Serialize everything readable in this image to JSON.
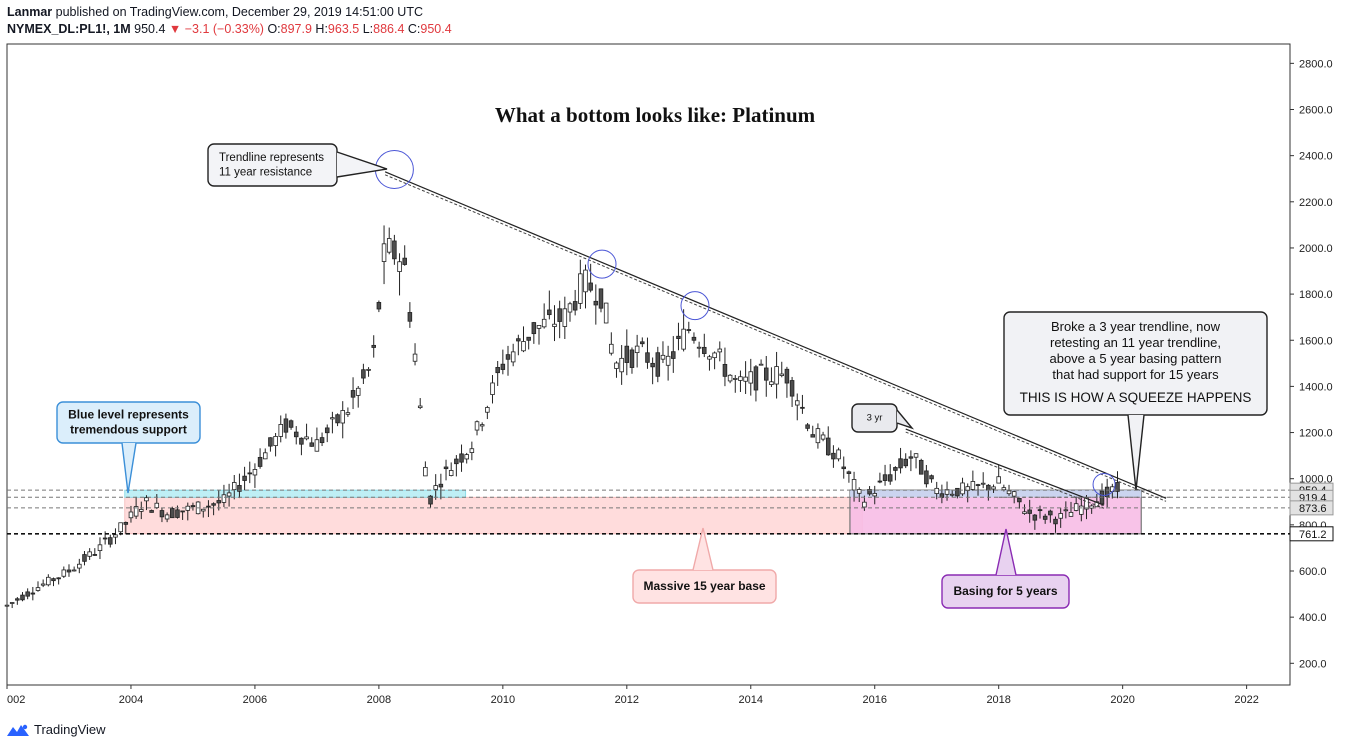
{
  "header": {
    "author": "Lanmar",
    "published_text": "published on TradingView.com, December 29, 2019 14:51:00 UTC",
    "symbol": "NYMEX_DL:PL1!, 1M",
    "last": "950.4",
    "change": "−3.1 (−0.33%)",
    "o_label": "O:",
    "o_value": "897.9",
    "h_label": "H:",
    "h_value": "963.5",
    "l_label": "L:",
    "l_value": "886.4",
    "c_label": "C:",
    "c_value": "950.4"
  },
  "footer": {
    "brand": "TradingView"
  },
  "colors": {
    "up_candle": "#ffffff",
    "down_candle": "#4d4d4d",
    "support_blue": "#bfeff5",
    "base_pink": "#ffdcdc",
    "basing_magenta": "#f7bde6",
    "callout_purple": "#e8d2f0"
  },
  "chart_data": {
    "type": "candlestick",
    "title": "What a bottom looks like: Platinum",
    "xlabel": "",
    "ylabel": "",
    "x_tick_labels": [
      "002",
      "2004",
      "2006",
      "2008",
      "2010",
      "2012",
      "2014",
      "2016",
      "2018",
      "2020",
      "2022"
    ],
    "x_tick_years": [
      2002,
      2004,
      2006,
      2008,
      2010,
      2012,
      2014,
      2016,
      2018,
      2020,
      2022
    ],
    "y_tick_labels": [
      "200.0",
      "400.0",
      "600.0",
      "800.0",
      "1000.0",
      "1200.0",
      "1400.0",
      "1600.0",
      "1800.0",
      "2000.0",
      "2200.0",
      "2400.0",
      "2600.0",
      "2800.0"
    ],
    "ylim": [
      30,
      2900
    ],
    "xlim": [
      2002.0,
      2022.7
    ],
    "grid": false,
    "price_labels": [
      {
        "text": "950.4",
        "value": 950.4
      },
      {
        "text": "919.4",
        "value": 919.4
      },
      {
        "text": "873.6",
        "value": 873.6
      },
      {
        "text": "761.2",
        "value": 761.2
      }
    ],
    "series_close_path": [
      [
        2002.0,
        450
      ],
      [
        2002.5,
        530
      ],
      [
        2003.0,
        600
      ],
      [
        2003.5,
        700
      ],
      [
        2003.9,
        800
      ],
      [
        2004.2,
        900
      ],
      [
        2004.6,
        850
      ],
      [
        2005.0,
        870
      ],
      [
        2005.5,
        900
      ],
      [
        2006.0,
        1050
      ],
      [
        2006.5,
        1230
      ],
      [
        2007.0,
        1150
      ],
      [
        2007.5,
        1300
      ],
      [
        2007.9,
        1500
      ],
      [
        2008.1,
        2000
      ],
      [
        2008.4,
        1950
      ],
      [
        2008.6,
        1500
      ],
      [
        2008.8,
        900
      ],
      [
        2009.0,
        1000
      ],
      [
        2009.5,
        1150
      ],
      [
        2010.0,
        1500
      ],
      [
        2010.5,
        1650
      ],
      [
        2011.0,
        1700
      ],
      [
        2011.3,
        1850
      ],
      [
        2011.6,
        1800
      ],
      [
        2011.8,
        1500
      ],
      [
        2012.2,
        1550
      ],
      [
        2012.6,
        1480
      ],
      [
        2013.0,
        1650
      ],
      [
        2013.4,
        1550
      ],
      [
        2013.8,
        1400
      ],
      [
        2014.2,
        1450
      ],
      [
        2014.6,
        1450
      ],
      [
        2015.0,
        1200
      ],
      [
        2015.4,
        1100
      ],
      [
        2015.8,
        900
      ],
      [
        2016.2,
        1000
      ],
      [
        2016.6,
        1100
      ],
      [
        2017.0,
        950
      ],
      [
        2017.5,
        950
      ],
      [
        2018.0,
        980
      ],
      [
        2018.5,
        850
      ],
      [
        2019.0,
        830
      ],
      [
        2019.5,
        900
      ],
      [
        2019.9,
        950
      ]
    ],
    "zones": [
      {
        "name": "blue-support",
        "x0": 2003.9,
        "x1": 2009.4,
        "y0": 919.4,
        "y1": 950.4
      },
      {
        "name": "pink-base",
        "x0": 2003.9,
        "x1": 2015.8,
        "y0": 761.2,
        "y1": 919.4
      },
      {
        "name": "basing-zone",
        "x0": 2015.6,
        "x1": 2020.3,
        "y0": 761.2,
        "y1": 950.4
      }
    ],
    "trendlines": [
      {
        "name": "11-year-trendline",
        "x0": 2008.1,
        "y0": 2330,
        "x1": 2020.7,
        "y1": 915
      },
      {
        "name": "3-year-trendline",
        "x0": 2016.5,
        "y0": 1215,
        "x1": 2019.7,
        "y1": 885
      }
    ],
    "circles": [
      {
        "x": 2008.25,
        "y": 2340
      },
      {
        "x": 2011.6,
        "y": 1930
      },
      {
        "x": 2013.1,
        "y": 1750
      },
      {
        "x": 2019.7,
        "y": 975
      }
    ],
    "annotations": [
      {
        "id": "trendline-note",
        "lines": [
          "Trendline represents",
          "11 year resistance"
        ]
      },
      {
        "id": "support-note",
        "lines": [
          "Blue level represents",
          "tremendous support"
        ]
      },
      {
        "id": "base-note",
        "lines": [
          "Massive 15 year base"
        ]
      },
      {
        "id": "basing-note",
        "lines": [
          "Basing for 5 years"
        ]
      },
      {
        "id": "three-yr-note",
        "lines": [
          "3 yr"
        ]
      },
      {
        "id": "squeeze-note",
        "lines": [
          "Broke a 3 year trendline, now",
          "retesting an 11 year trendline,",
          "above a 5 year basing pattern",
          "that had support for 15 years"
        ],
        "emphasis": "THIS IS HOW A SQUEEZE HAPPENS"
      }
    ]
  }
}
